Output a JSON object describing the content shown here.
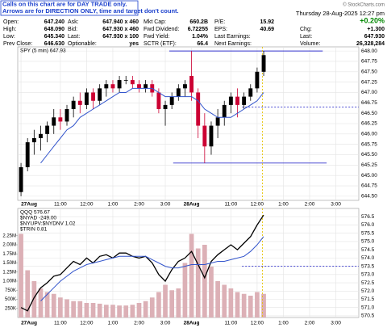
{
  "header": {
    "notice": [
      "Calls on this chart are for DAY TRADE only.",
      "Arrows are for DIRECTION ONLY, time and target don't count."
    ],
    "brand": "© StockCharts.com",
    "timestamp": "Thursday 28-Aug-2025 12:27 pm",
    "change_pct": "+0.20%",
    "quote": [
      [
        [
          "Open:",
          "647.240"
        ],
        [
          "Ask:",
          "647.940 x 460"
        ],
        [
          "Mkt Cap:",
          "660.2B"
        ],
        [
          "P/E:",
          "15.92"
        ]
      ],
      [
        [
          "High:",
          "648.090"
        ],
        [
          "Bid:",
          "647.930 x 460"
        ],
        [
          "Fwd Dividend:",
          "6.72255"
        ],
        [
          "EPS:",
          "40.69"
        ],
        [
          "Chg:",
          "+1.300"
        ]
      ],
      [
        [
          "Low:",
          "645.340"
        ],
        [
          "Last:",
          "647.930 x 100"
        ],
        [
          "Fwd Yield:",
          "1.04%"
        ],
        [
          "Last Earnings:"
        ],
        [
          "Last:",
          "647.930"
        ]
      ],
      [
        [
          "Prev Close:",
          "646.630"
        ],
        [
          "Optionable:",
          "yes"
        ],
        [
          "SCTR (ETF):",
          "66.4"
        ],
        [
          "Next Earnings:"
        ],
        [
          "Volume:",
          "26,328,284"
        ]
      ]
    ]
  },
  "chart_data": [
    {
      "type": "candlestick",
      "legend": [
        "SPY (5 min) 647.93"
      ],
      "up_color": "#000000",
      "down_color": "#cc0033",
      "ma_color": "#3355cc",
      "x": [
        0,
        1,
        2,
        3,
        4,
        5,
        6,
        7,
        8,
        9,
        10,
        11,
        12,
        13,
        14,
        15,
        16,
        17,
        18,
        19,
        20,
        21,
        22,
        23,
        24,
        25,
        26,
        27,
        28,
        29,
        30,
        31,
        32,
        33,
        34,
        35,
        36,
        37
      ],
      "open": [
        644.6,
        645.2,
        645.8,
        645.9,
        646.0,
        646.2,
        646.4,
        646.3,
        646.6,
        646.8,
        646.7,
        647.0,
        646.8,
        647.1,
        647.2,
        647.1,
        647.3,
        647.3,
        647.2,
        647.1,
        647.2,
        647.0,
        646.6,
        646.7,
        646.9,
        647.1,
        647.4,
        647.0,
        646.2,
        645.7,
        646.2,
        646.4,
        646.7,
        646.9,
        646.7,
        646.9,
        647.1,
        647.5
      ],
      "high": [
        645.3,
        645.9,
        646.1,
        646.2,
        646.3,
        646.6,
        646.6,
        646.7,
        646.9,
        647.0,
        647.1,
        647.1,
        647.2,
        647.3,
        647.3,
        647.4,
        647.4,
        647.4,
        647.3,
        647.3,
        647.3,
        647.1,
        646.8,
        647.0,
        647.2,
        647.3,
        648.0,
        647.1,
        646.5,
        646.3,
        646.6,
        646.8,
        647.0,
        647.1,
        647.0,
        647.2,
        647.6,
        648.0
      ],
      "low": [
        644.5,
        645.1,
        645.5,
        645.6,
        645.8,
        646.0,
        646.1,
        646.2,
        646.4,
        646.5,
        646.6,
        646.6,
        646.7,
        646.9,
        647.0,
        647.0,
        647.2,
        647.1,
        647.0,
        647.0,
        646.9,
        646.5,
        646.2,
        646.6,
        646.8,
        646.9,
        646.8,
        645.9,
        645.3,
        645.5,
        645.9,
        646.2,
        646.5,
        646.4,
        646.6,
        646.8,
        647.0,
        647.4
      ],
      "close": [
        645.2,
        645.8,
        645.9,
        646.0,
        646.2,
        646.4,
        646.3,
        646.6,
        646.8,
        646.7,
        647.0,
        646.8,
        647.1,
        647.2,
        647.1,
        647.3,
        647.3,
        647.2,
        647.1,
        647.2,
        647.0,
        646.6,
        646.7,
        646.9,
        647.1,
        647.2,
        647.0,
        646.2,
        645.7,
        646.2,
        646.4,
        646.7,
        646.9,
        646.7,
        646.9,
        647.1,
        647.5,
        647.9
      ],
      "ma": [
        null,
        null,
        null,
        645.3,
        645.5,
        645.7,
        645.9,
        646.1,
        646.2,
        646.4,
        646.5,
        646.6,
        646.7,
        646.8,
        646.9,
        647.0,
        647.0,
        647.1,
        647.1,
        647.1,
        647.1,
        647.0,
        646.9,
        646.9,
        646.9,
        646.9,
        646.9,
        646.8,
        646.6,
        646.5,
        646.4,
        646.4,
        646.4,
        646.5,
        646.6,
        646.7,
        646.8,
        647.0
      ],
      "xlim": [
        -0.5,
        51.5
      ],
      "xticks": [
        {
          "value": 0,
          "label": "27Aug"
        },
        {
          "value": 6,
          "label": "11:00"
        },
        {
          "value": 10,
          "label": "12:00"
        },
        {
          "value": 14,
          "label": "1:00"
        },
        {
          "value": 18,
          "label": "2:00"
        },
        {
          "value": 22,
          "label": "3:00"
        },
        {
          "value": 26,
          "label": "28Aug"
        },
        {
          "value": 32,
          "label": "11:00"
        },
        {
          "value": 36,
          "label": "12:00"
        },
        {
          "value": 40,
          "label": "1:00"
        },
        {
          "value": 44,
          "label": "2:00"
        },
        {
          "value": 48,
          "label": "3:00"
        }
      ],
      "ylim": [
        644.4,
        648.1
      ],
      "yticks": [
        {
          "value": 644.5,
          "label": "644.50"
        },
        {
          "value": 644.75,
          "label": "644.75"
        },
        {
          "value": 645,
          "label": "645.00"
        },
        {
          "value": 645.25,
          "label": "645.25"
        },
        {
          "value": 645.5,
          "label": "645.50"
        },
        {
          "value": 645.75,
          "label": "645.75"
        },
        {
          "value": 646,
          "label": "646.00"
        },
        {
          "value": 646.25,
          "label": "646.25"
        },
        {
          "value": 646.5,
          "label": "646.50"
        },
        {
          "value": 646.75,
          "label": "646.75"
        },
        {
          "value": 647,
          "label": "647.00"
        },
        {
          "value": 647.25,
          "label": "647.25"
        },
        {
          "value": 647.5,
          "label": "647.50"
        },
        {
          "value": 647.75,
          "label": "647.75"
        },
        {
          "value": 648,
          "label": "648.00"
        }
      ],
      "hlines": [
        {
          "value": 648.0,
          "xrange": [
            22.6,
            46
          ],
          "color": "#3333cc",
          "dashed": false
        },
        {
          "value": 645.3,
          "xrange": [
            23.2,
            46.6
          ],
          "color": "#3333cc",
          "dashed": false
        },
        {
          "value": 646.65,
          "xrange": [
            33.7,
            51.5
          ],
          "color": "#3333cc",
          "dashed": true
        }
      ],
      "vlines": [
        {
          "value": 36.8,
          "color": "#e6c200",
          "dashed": true
        }
      ],
      "grid": true
    },
    {
      "type": "line",
      "legend": [
        "QQQ 576.67",
        "$NYAD -249.00",
        "$NYUPV:$NYDNV 1.02",
        "$TRIN 0.81"
      ],
      "line_color": "#000000",
      "ma_color": "#3355cc",
      "volume_color": "#dcb0b6",
      "x": [
        0,
        1,
        2,
        3,
        4,
        5,
        6,
        7,
        8,
        9,
        10,
        11,
        12,
        13,
        14,
        15,
        16,
        17,
        18,
        19,
        20,
        21,
        22,
        23,
        24,
        25,
        26,
        27,
        28,
        29,
        30,
        31,
        32,
        33,
        34,
        35,
        36,
        37
      ],
      "values": [
        571.0,
        570.8,
        571.6,
        572.2,
        572.5,
        572.9,
        573.0,
        573.4,
        573.8,
        573.6,
        574.0,
        573.7,
        574.1,
        574.2,
        574.0,
        574.3,
        574.3,
        574.1,
        574.0,
        574.1,
        573.7,
        573.0,
        572.6,
        573.3,
        573.8,
        574.0,
        574.4,
        573.6,
        572.8,
        573.8,
        574.2,
        574.5,
        574.8,
        574.5,
        574.9,
        575.3,
        576.0,
        576.6
      ],
      "ma": [
        null,
        null,
        null,
        571.4,
        571.8,
        572.2,
        572.6,
        572.9,
        573.2,
        573.4,
        573.6,
        573.7,
        573.8,
        573.9,
        574.0,
        574.1,
        574.1,
        574.1,
        574.1,
        574.1,
        573.9,
        573.7,
        573.5,
        573.4,
        573.4,
        573.5,
        573.6,
        573.6,
        573.6,
        573.7,
        573.8,
        573.8,
        573.9,
        574.0,
        574.1,
        574.4,
        574.8,
        575.3
      ],
      "volume": [
        2300000,
        1300000,
        1000000,
        800000,
        700000,
        650000,
        550000,
        500000,
        450000,
        450000,
        400000,
        400000,
        380000,
        350000,
        350000,
        330000,
        330000,
        350000,
        400000,
        450000,
        550000,
        700000,
        900000,
        750000,
        800000,
        1500000,
        2300000,
        1900000,
        2000000,
        1400000,
        1000000,
        900000,
        800000,
        700000,
        650000,
        600000,
        700000,
        650000
      ],
      "xlim": [
        -0.5,
        51.5
      ],
      "xticks": [
        {
          "value": 0,
          "label": "27Aug"
        },
        {
          "value": 6,
          "label": "11:00"
        },
        {
          "value": 10,
          "label": "12:00"
        },
        {
          "value": 14,
          "label": "1:00"
        },
        {
          "value": 18,
          "label": "2:00"
        },
        {
          "value": 22,
          "label": "3:00"
        },
        {
          "value": 26,
          "label": "28Aug"
        },
        {
          "value": 32,
          "label": "11:00"
        },
        {
          "value": 36,
          "label": "12:00"
        },
        {
          "value": 40,
          "label": "1:00"
        },
        {
          "value": 44,
          "label": "2:00"
        },
        {
          "value": 48,
          "label": "3:00"
        }
      ],
      "ylim": [
        570.4,
        577.0
      ],
      "yticks": [
        {
          "value": 570.5,
          "label": "570.5"
        },
        {
          "value": 571,
          "label": "571.0"
        },
        {
          "value": 571.5,
          "label": "571.5"
        },
        {
          "value": 572,
          "label": "572.0"
        },
        {
          "value": 572.5,
          "label": "572.5"
        },
        {
          "value": 573,
          "label": "573.0"
        },
        {
          "value": 573.5,
          "label": "573.5"
        },
        {
          "value": 574,
          "label": "574.0"
        },
        {
          "value": 574.5,
          "label": "574.5"
        },
        {
          "value": 575,
          "label": "575.0"
        },
        {
          "value": 575.5,
          "label": "575.5"
        },
        {
          "value": 576,
          "label": "576.0"
        },
        {
          "value": 576.5,
          "label": "576.5"
        }
      ],
      "y2lim": [
        0,
        3000000
      ],
      "y2ticks": [
        {
          "value": 250000,
          "label": "250K"
        },
        {
          "value": 500000,
          "label": "500K"
        },
        {
          "value": 750000,
          "label": "750K"
        },
        {
          "value": 1000000,
          "label": "1.00M"
        },
        {
          "value": 1250000,
          "label": "1.25M"
        },
        {
          "value": 1500000,
          "label": "1.50M"
        },
        {
          "value": 1750000,
          "label": "1.75M"
        },
        {
          "value": 2000000,
          "label": "2.00M"
        },
        {
          "value": 2250000,
          "label": "2.25M"
        }
      ],
      "hlines": [
        {
          "value": 573.5,
          "xrange": [
            33.7,
            51.5
          ],
          "color": "#3333cc",
          "dashed": true
        }
      ],
      "vlines": [
        {
          "value": 36.8,
          "color": "#e6c200",
          "dashed": true
        }
      ],
      "grid": true
    }
  ]
}
